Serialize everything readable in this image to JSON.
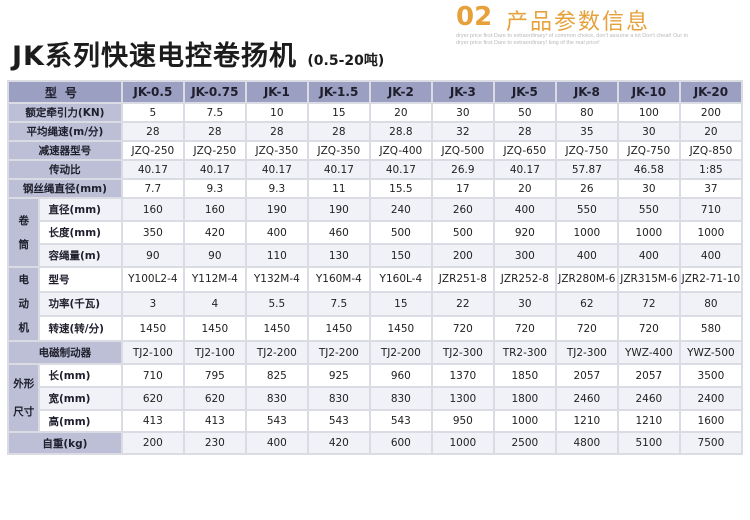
{
  "header": {
    "title": "JK系列快速电控卷扬机",
    "title_sub": "(0.5-20吨)",
    "section_number": "02",
    "section_title": "产品参数信息",
    "tagline": "dryer price first Dare to extraordinary! of common choice, don't assume a lot Don't cheat! Our in dryer price first Dare to extraordinary! king of the real price!"
  },
  "table": {
    "header_label": "型号",
    "models": [
      "JK-0.5",
      "JK-0.75",
      "JK-1",
      "JK-1.5",
      "JK-2",
      "JK-3",
      "JK-5",
      "JK-8",
      "JK-10",
      "JK-20"
    ],
    "rows": [
      {
        "label": "额定牵引力(KN)",
        "values": [
          "5",
          "7.5",
          "10",
          "15",
          "20",
          "30",
          "50",
          "80",
          "100",
          "200"
        ]
      },
      {
        "label": "平均绳速(m/分)",
        "values": [
          "28",
          "28",
          "28",
          "28",
          "28.8",
          "32",
          "28",
          "35",
          "30",
          "20"
        ]
      },
      {
        "label": "减速器型号",
        "values": [
          "JZQ-250",
          "JZQ-250",
          "JZQ-350",
          "JZQ-350",
          "JZQ-400",
          "JZQ-500",
          "JZQ-650",
          "JZQ-750",
          "JZQ-750",
          "JZQ-850"
        ]
      },
      {
        "label": "传动比",
        "values": [
          "40.17",
          "40.17",
          "40.17",
          "40.17",
          "40.17",
          "26.9",
          "40.17",
          "57.87",
          "46.58",
          "1:85"
        ]
      },
      {
        "label": "钢丝绳直径(mm)",
        "values": [
          "7.7",
          "9.3",
          "9.3",
          "11",
          "15.5",
          "17",
          "20",
          "26",
          "30",
          "37"
        ]
      }
    ],
    "groups": [
      {
        "label": "卷筒",
        "rows": [
          {
            "label": "直径(mm)",
            "values": [
              "160",
              "160",
              "190",
              "190",
              "240",
              "260",
              "400",
              "550",
              "550",
              "710"
            ]
          },
          {
            "label": "长度(mm)",
            "values": [
              "350",
              "420",
              "400",
              "460",
              "500",
              "500",
              "920",
              "1000",
              "1000",
              "1000"
            ]
          },
          {
            "label": "容绳量(m)",
            "values": [
              "90",
              "90",
              "110",
              "130",
              "150",
              "200",
              "300",
              "400",
              "400",
              "400"
            ]
          }
        ]
      },
      {
        "label": "电动机",
        "rows": [
          {
            "label": "型号",
            "values": [
              "Y100L2-4",
              "Y112M-4",
              "Y132M-4",
              "Y160M-4",
              "Y160L-4",
              "JZR251-8",
              "JZR252-8",
              "JZR280M-6",
              "JZR315M-6",
              "JZR2-71-10"
            ]
          },
          {
            "label": "功率(千瓦)",
            "values": [
              "3",
              "4",
              "5.5",
              "7.5",
              "15",
              "22",
              "30",
              "62",
              "72",
              "80"
            ]
          },
          {
            "label": "转速(转/分)",
            "values": [
              "1450",
              "1450",
              "1450",
              "1450",
              "1450",
              "720",
              "720",
              "720",
              "720",
              "580"
            ]
          }
        ]
      }
    ],
    "brake_row": {
      "label": "电磁制动器",
      "values": [
        "TJ2-100",
        "TJ2-100",
        "TJ2-200",
        "TJ2-200",
        "TJ2-200",
        "TJ2-300",
        "TR2-300",
        "TJ2-300",
        "YWZ-400",
        "YWZ-500"
      ]
    },
    "dimension_group": {
      "label_top": "外形",
      "label_bottom": "尺寸",
      "rows": [
        {
          "label": "长(mm)",
          "values": [
            "710",
            "795",
            "825",
            "925",
            "960",
            "1370",
            "1850",
            "2057",
            "2057",
            "3500"
          ]
        },
        {
          "label": "宽(mm)",
          "values": [
            "620",
            "620",
            "830",
            "830",
            "830",
            "1300",
            "1800",
            "2460",
            "2460",
            "2400"
          ]
        },
        {
          "label": "高(mm)",
          "values": [
            "413",
            "413",
            "543",
            "543",
            "543",
            "950",
            "1000",
            "1210",
            "1210",
            "1600"
          ]
        }
      ]
    },
    "weight_row": {
      "label": "自重(kg)",
      "values": [
        "200",
        "230",
        "400",
        "420",
        "600",
        "1000",
        "2500",
        "4800",
        "5100",
        "7500"
      ]
    }
  }
}
